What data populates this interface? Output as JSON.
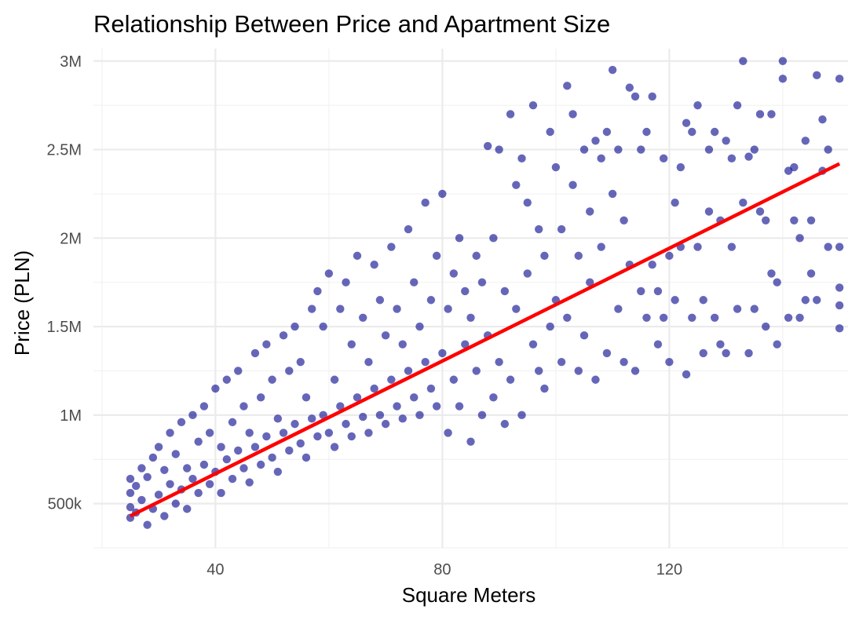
{
  "chart_data": {
    "type": "scatter",
    "title": "Relationship Between Price and Apartment Size",
    "xlabel": "Square Meters",
    "ylabel": "Price (PLN)",
    "xlim": [
      18.5,
      151.5
    ],
    "ylim": [
      250000,
      3070000
    ],
    "x_ticks": [
      {
        "value": 40,
        "label": "40"
      },
      {
        "value": 80,
        "label": "80"
      },
      {
        "value": 120,
        "label": "120"
      }
    ],
    "y_ticks": [
      {
        "value": 500000,
        "label": "500k"
      },
      {
        "value": 1000000,
        "label": "1M"
      },
      {
        "value": 1500000,
        "label": "1.5M"
      },
      {
        "value": 2000000,
        "label": "2M"
      },
      {
        "value": 2500000,
        "label": "2.5M"
      },
      {
        "value": 3000000,
        "label": "3M"
      }
    ],
    "grid": true,
    "point_color": "#00008B",
    "point_opacity": 0.6,
    "trend_color": "#FF0000",
    "series": [
      {
        "type": "scatter",
        "points": [
          [
            25,
            420000
          ],
          [
            25,
            480000
          ],
          [
            25,
            560000
          ],
          [
            25,
            640000
          ],
          [
            26,
            450000
          ],
          [
            26,
            600000
          ],
          [
            27,
            520000
          ],
          [
            27,
            700000
          ],
          [
            28,
            380000
          ],
          [
            28,
            650000
          ],
          [
            29,
            470000
          ],
          [
            29,
            760000
          ],
          [
            30,
            550000
          ],
          [
            30,
            820000
          ],
          [
            31,
            430000
          ],
          [
            31,
            690000
          ],
          [
            32,
            610000
          ],
          [
            32,
            900000
          ],
          [
            33,
            500000
          ],
          [
            33,
            780000
          ],
          [
            34,
            580000
          ],
          [
            34,
            960000
          ],
          [
            35,
            470000
          ],
          [
            35,
            700000
          ],
          [
            36,
            640000
          ],
          [
            36,
            1000000
          ],
          [
            37,
            560000
          ],
          [
            37,
            850000
          ],
          [
            38,
            720000
          ],
          [
            38,
            1050000
          ],
          [
            39,
            610000
          ],
          [
            39,
            900000
          ],
          [
            40,
            680000
          ],
          [
            40,
            1150000
          ],
          [
            41,
            560000
          ],
          [
            41,
            820000
          ],
          [
            42,
            750000
          ],
          [
            42,
            1200000
          ],
          [
            43,
            640000
          ],
          [
            43,
            960000
          ],
          [
            44,
            800000
          ],
          [
            44,
            1250000
          ],
          [
            45,
            700000
          ],
          [
            45,
            1050000
          ],
          [
            46,
            620000
          ],
          [
            46,
            900000
          ],
          [
            47,
            820000
          ],
          [
            47,
            1350000
          ],
          [
            48,
            720000
          ],
          [
            48,
            1100000
          ],
          [
            49,
            880000
          ],
          [
            49,
            1400000
          ],
          [
            50,
            760000
          ],
          [
            50,
            1200000
          ],
          [
            51,
            680000
          ],
          [
            51,
            980000
          ],
          [
            52,
            900000
          ],
          [
            52,
            1450000
          ],
          [
            53,
            800000
          ],
          [
            53,
            1250000
          ],
          [
            54,
            950000
          ],
          [
            54,
            1500000
          ],
          [
            55,
            840000
          ],
          [
            55,
            1300000
          ],
          [
            56,
            760000
          ],
          [
            56,
            1100000
          ],
          [
            57,
            980000
          ],
          [
            57,
            1600000
          ],
          [
            58,
            880000
          ],
          [
            58,
            1700000
          ],
          [
            59,
            1000000
          ],
          [
            59,
            1500000
          ],
          [
            60,
            900000
          ],
          [
            60,
            1800000
          ],
          [
            61,
            820000
          ],
          [
            61,
            1200000
          ],
          [
            62,
            1050000
          ],
          [
            62,
            1600000
          ],
          [
            63,
            950000
          ],
          [
            63,
            1750000
          ],
          [
            64,
            880000
          ],
          [
            64,
            1400000
          ],
          [
            65,
            1100000
          ],
          [
            65,
            1900000
          ],
          [
            66,
            990000
          ],
          [
            66,
            1550000
          ],
          [
            67,
            900000
          ],
          [
            67,
            1300000
          ],
          [
            68,
            1150000
          ],
          [
            68,
            1850000
          ],
          [
            69,
            1000000
          ],
          [
            69,
            1650000
          ],
          [
            70,
            950000
          ],
          [
            70,
            1450000
          ],
          [
            71,
            1200000
          ],
          [
            71,
            1950000
          ],
          [
            72,
            1050000
          ],
          [
            72,
            1600000
          ],
          [
            73,
            980000
          ],
          [
            73,
            1400000
          ],
          [
            74,
            1250000
          ],
          [
            74,
            2050000
          ],
          [
            75,
            1100000
          ],
          [
            75,
            1750000
          ],
          [
            76,
            1000000
          ],
          [
            76,
            1500000
          ],
          [
            77,
            1300000
          ],
          [
            77,
            2200000
          ],
          [
            78,
            1150000
          ],
          [
            78,
            1650000
          ],
          [
            79,
            1050000
          ],
          [
            79,
            1900000
          ],
          [
            80,
            1350000
          ],
          [
            80,
            2250000
          ],
          [
            81,
            900000
          ],
          [
            81,
            1600000
          ],
          [
            82,
            1200000
          ],
          [
            82,
            1800000
          ],
          [
            83,
            1050000
          ],
          [
            83,
            2000000
          ],
          [
            84,
            1400000
          ],
          [
            84,
            1700000
          ],
          [
            85,
            850000
          ],
          [
            85,
            1550000
          ],
          [
            86,
            1250000
          ],
          [
            86,
            1900000
          ],
          [
            87,
            1000000
          ],
          [
            87,
            1750000
          ],
          [
            88,
            2520000
          ],
          [
            88,
            1450000
          ],
          [
            89,
            1100000
          ],
          [
            89,
            2000000
          ],
          [
            90,
            1300000
          ],
          [
            90,
            2500000
          ],
          [
            91,
            950000
          ],
          [
            91,
            1700000
          ],
          [
            92,
            2700000
          ],
          [
            92,
            1200000
          ],
          [
            93,
            2300000
          ],
          [
            93,
            1600000
          ],
          [
            94,
            1000000
          ],
          [
            94,
            2450000
          ],
          [
            95,
            1800000
          ],
          [
            95,
            2200000
          ],
          [
            96,
            2750000
          ],
          [
            96,
            1400000
          ],
          [
            97,
            1250000
          ],
          [
            97,
            2050000
          ],
          [
            98,
            1900000
          ],
          [
            98,
            1150000
          ],
          [
            99,
            2600000
          ],
          [
            99,
            1500000
          ],
          [
            100,
            1650000
          ],
          [
            100,
            2400000
          ],
          [
            101,
            1300000
          ],
          [
            101,
            2050000
          ],
          [
            102,
            2860000
          ],
          [
            102,
            1550000
          ],
          [
            103,
            2300000
          ],
          [
            103,
            2700000
          ],
          [
            104,
            1250000
          ],
          [
            104,
            1900000
          ],
          [
            105,
            2500000
          ],
          [
            105,
            1450000
          ],
          [
            106,
            2150000
          ],
          [
            106,
            1750000
          ],
          [
            107,
            2550000
          ],
          [
            107,
            1200000
          ],
          [
            108,
            2450000
          ],
          [
            108,
            1950000
          ],
          [
            109,
            2600000
          ],
          [
            109,
            1350000
          ],
          [
            110,
            2950000
          ],
          [
            110,
            2250000
          ],
          [
            111,
            1600000
          ],
          [
            111,
            2500000
          ],
          [
            112,
            1300000
          ],
          [
            112,
            2100000
          ],
          [
            113,
            2850000
          ],
          [
            113,
            1850000
          ],
          [
            114,
            2800000
          ],
          [
            114,
            1250000
          ],
          [
            115,
            2500000
          ],
          [
            115,
            1700000
          ],
          [
            116,
            2600000
          ],
          [
            116,
            1550000
          ],
          [
            117,
            2800000
          ],
          [
            117,
            1850000
          ],
          [
            118,
            1700000
          ],
          [
            118,
            1400000
          ],
          [
            119,
            2450000
          ],
          [
            119,
            1550000
          ],
          [
            120,
            1300000
          ],
          [
            120,
            1900000
          ],
          [
            121,
            2200000
          ],
          [
            121,
            1650000
          ],
          [
            122,
            1950000
          ],
          [
            122,
            2400000
          ],
          [
            123,
            2650000
          ],
          [
            123,
            1230000
          ],
          [
            124,
            2600000
          ],
          [
            124,
            1550000
          ],
          [
            125,
            2750000
          ],
          [
            125,
            1950000
          ],
          [
            126,
            1650000
          ],
          [
            126,
            1350000
          ],
          [
            127,
            2500000
          ],
          [
            127,
            2150000
          ],
          [
            128,
            2600000
          ],
          [
            128,
            1550000
          ],
          [
            129,
            2100000
          ],
          [
            129,
            1400000
          ],
          [
            130,
            2550000
          ],
          [
            130,
            1350000
          ],
          [
            131,
            2450000
          ],
          [
            131,
            1950000
          ],
          [
            132,
            2750000
          ],
          [
            132,
            1600000
          ],
          [
            133,
            3000000
          ],
          [
            133,
            2200000
          ],
          [
            134,
            2460000
          ],
          [
            134,
            1350000
          ],
          [
            135,
            2500000
          ],
          [
            135,
            1600000
          ],
          [
            136,
            2700000
          ],
          [
            136,
            2150000
          ],
          [
            137,
            2100000
          ],
          [
            137,
            1500000
          ],
          [
            138,
            2700000
          ],
          [
            138,
            1800000
          ],
          [
            139,
            1750000
          ],
          [
            139,
            1400000
          ],
          [
            140,
            3000000
          ],
          [
            140,
            2900000
          ],
          [
            141,
            2380000
          ],
          [
            141,
            1550000
          ],
          [
            142,
            2400000
          ],
          [
            142,
            2100000
          ],
          [
            143,
            2000000
          ],
          [
            143,
            1550000
          ],
          [
            144,
            2550000
          ],
          [
            144,
            1650000
          ],
          [
            145,
            2100000
          ],
          [
            145,
            1800000
          ],
          [
            146,
            2920000
          ],
          [
            146,
            1650000
          ],
          [
            147,
            2380000
          ],
          [
            147,
            2670000
          ],
          [
            148,
            2500000
          ],
          [
            148,
            1950000
          ],
          [
            150,
            2900000
          ],
          [
            150,
            1950000
          ],
          [
            150,
            1720000
          ],
          [
            150,
            1620000
          ],
          [
            150,
            1490000
          ]
        ]
      }
    ],
    "trend_line": {
      "x": [
        25,
        150
      ],
      "y": [
        430000,
        2420000
      ]
    }
  }
}
